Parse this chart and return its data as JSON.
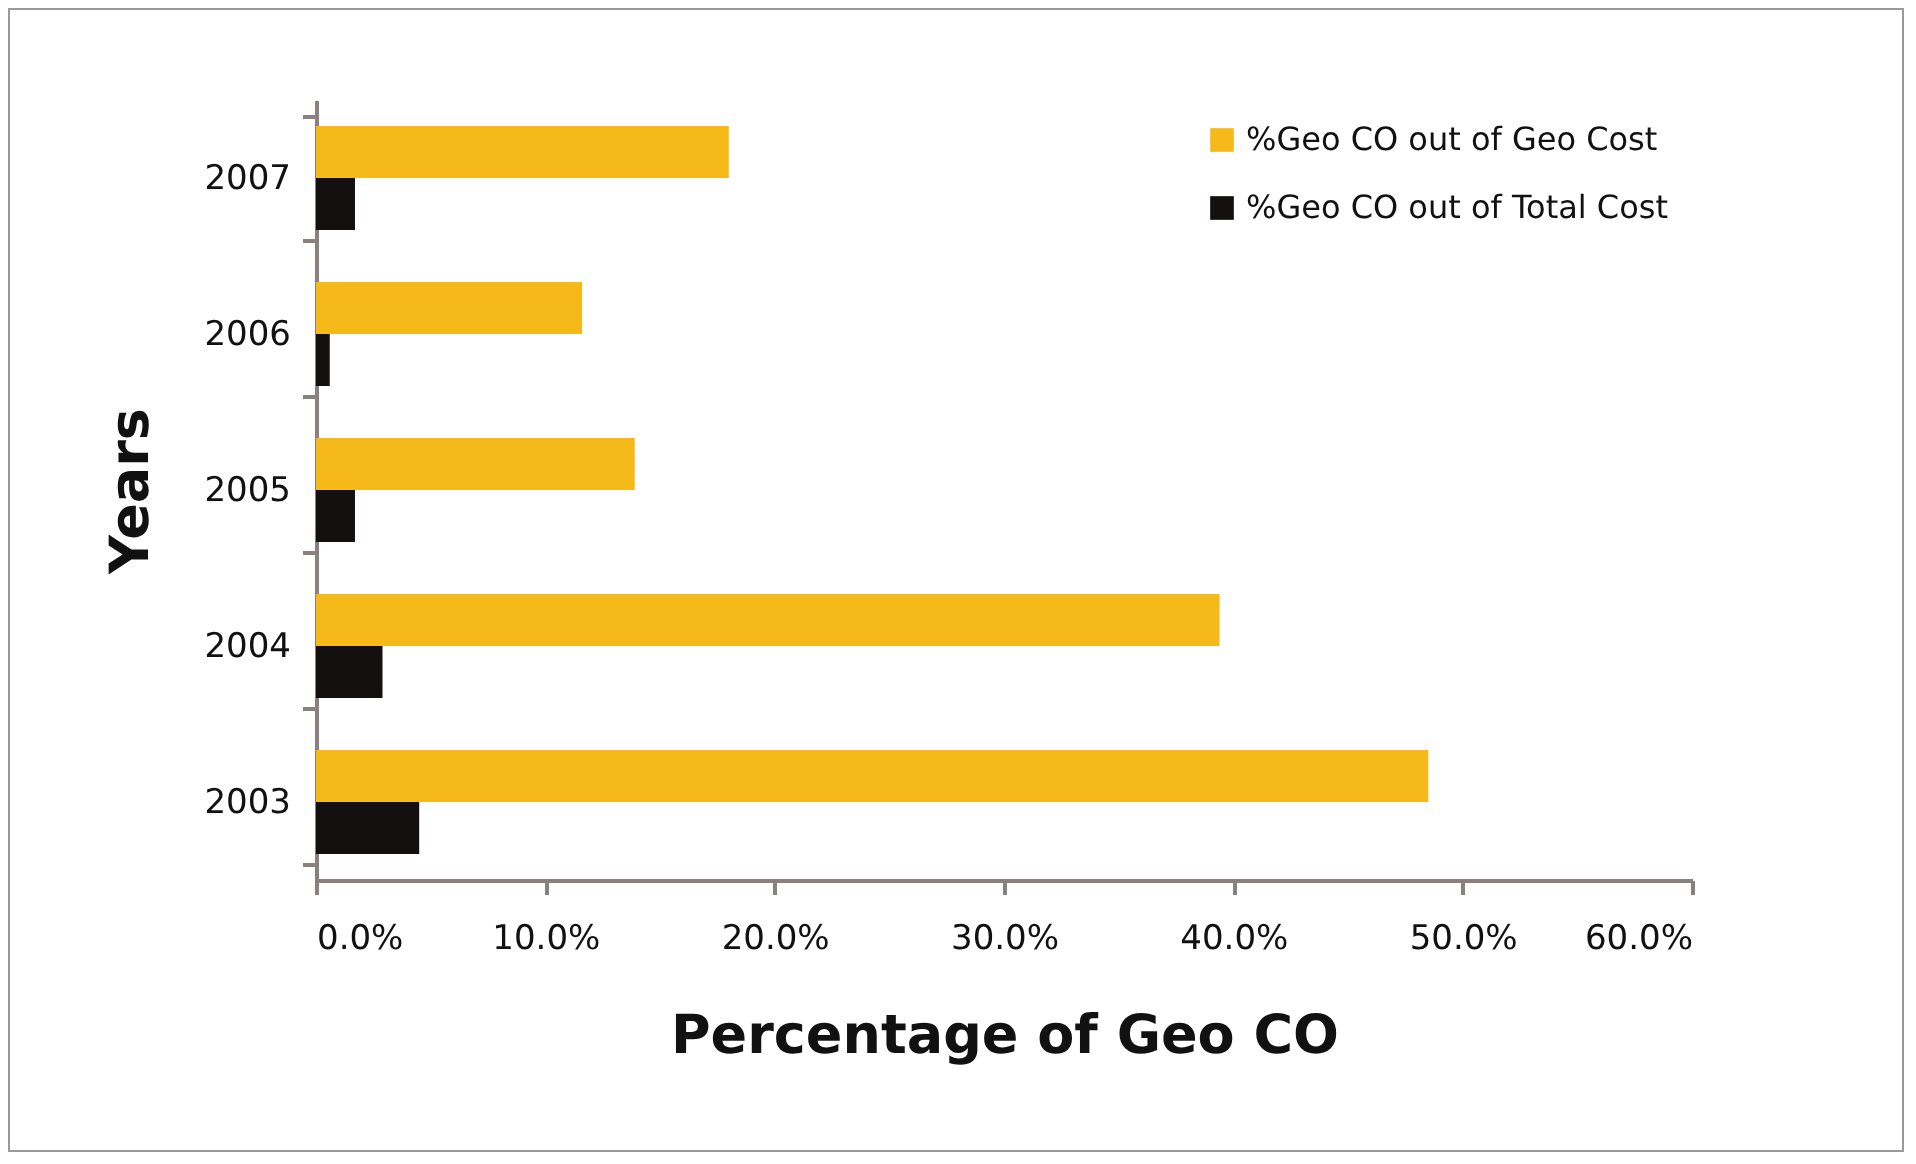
{
  "chart_data": {
    "type": "bar",
    "orientation": "horizontal",
    "xlabel": "Percentage of Geo CO",
    "ylabel": "Years",
    "categories": [
      "2007",
      "2006",
      "2005",
      "2004",
      "2003"
    ],
    "series": [
      {
        "name": "%Geo CO out of Geo Cost",
        "color": "#f5b919",
        "values": [
          18.0,
          11.6,
          13.9,
          39.4,
          48.5
        ]
      },
      {
        "name": "%Geo CO out of Total Cost",
        "color": "#141010",
        "values": [
          1.7,
          0.6,
          1.7,
          2.9,
          4.5
        ]
      }
    ],
    "xlim": [
      0,
      60
    ],
    "xticks": [
      {
        "value": 0,
        "label": "0.0%"
      },
      {
        "value": 10,
        "label": "10.0%"
      },
      {
        "value": 20,
        "label": "20.0%"
      },
      {
        "value": 30,
        "label": "30.0%"
      },
      {
        "value": 40,
        "label": "40.0%"
      },
      {
        "value": 50,
        "label": "50.0%"
      },
      {
        "value": 60,
        "label": "60.0%"
      }
    ],
    "grid": false,
    "legend": "top right"
  }
}
